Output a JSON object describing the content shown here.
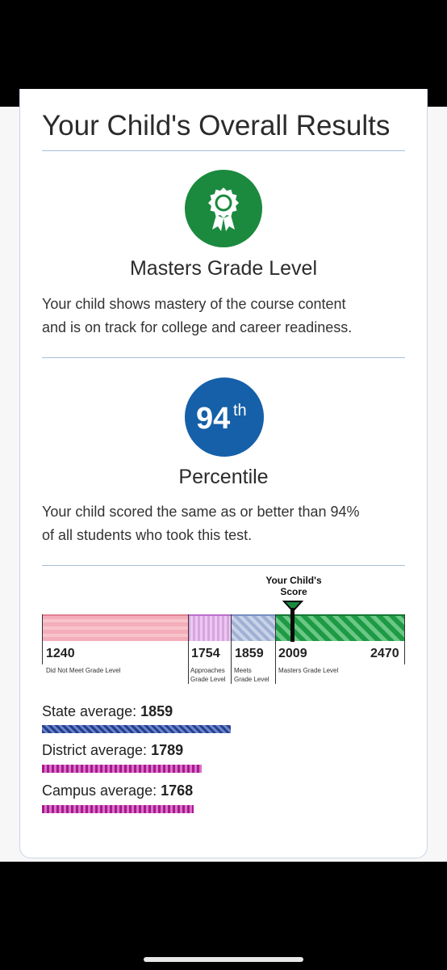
{
  "title": "Your Child's Overall Results",
  "level": {
    "icon": "award-ribbon-icon",
    "heading": "Masters Grade Level",
    "line1": "Your child shows mastery of the course content",
    "line2": "and is on track for college and career readiness."
  },
  "percentile": {
    "number": "94",
    "suffix": "th",
    "heading": "Percentile",
    "line1": "Your child scored the same as or better than 94%",
    "line2": "of all students who took this test."
  },
  "scale": {
    "marker_label_1": "Your Child's",
    "marker_label_2": "Score",
    "scores": [
      "1240",
      "1754",
      "1859",
      "2009",
      "2470"
    ],
    "levels": {
      "dnm": "Did Not Meet Grade Level",
      "app_1": "Approaches",
      "app_2": "Grade Level",
      "meets_1": "Meets",
      "meets_2": "Grade Level",
      "masters": "Masters Grade Level"
    }
  },
  "averages": {
    "state_label": "State average:",
    "state_value": "1859",
    "district_label": "District average:",
    "district_value": "1789",
    "campus_label": "Campus average:",
    "campus_value": "1768"
  },
  "colors": {
    "masters_green": "#1b8a3e",
    "percentile_blue": "#1560a8",
    "state_bar": "#233f8f",
    "district_bar": "#a6198f"
  }
}
